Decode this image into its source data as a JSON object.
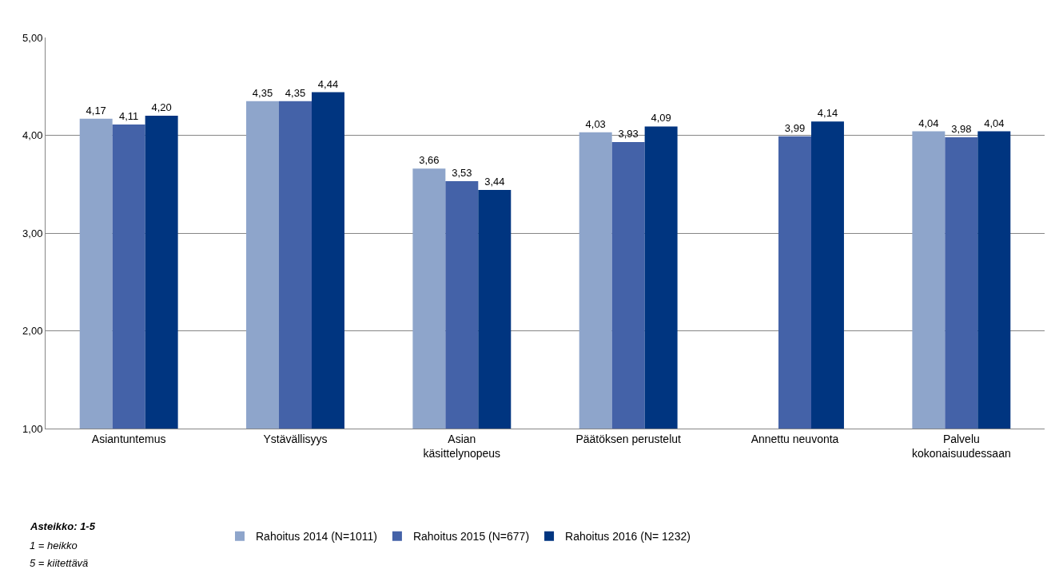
{
  "chart_data": {
    "type": "bar",
    "categories": [
      "Asiantuntemus",
      "Ystävällisyys",
      "Asian käsittelynopeus",
      "Päätöksen perustelut",
      "Annettu neuvonta",
      "Palvelu kokonaisuudessaan"
    ],
    "series": [
      {
        "name": "Rahoitus 2014 (N=1011)",
        "color": "#8ea5cb",
        "values": [
          4.17,
          4.35,
          3.66,
          4.03,
          null,
          4.04
        ],
        "value_labels": [
          "4,17",
          "4,35",
          "3,66",
          "4,03",
          null,
          "4,04"
        ]
      },
      {
        "name": "Rahoitus 2015 (N=677)",
        "color": "#4462a8",
        "values": [
          4.11,
          4.35,
          3.53,
          3.93,
          3.99,
          3.98
        ],
        "value_labels": [
          "4,11",
          "4,35",
          "3,53",
          "3,93",
          "3,99",
          "3,98"
        ]
      },
      {
        "name": "Rahoitus 2016 (N= 1232)",
        "color": "#003580",
        "values": [
          4.2,
          4.44,
          3.44,
          4.09,
          4.14,
          4.04
        ],
        "value_labels": [
          "4,20",
          "4,44",
          "3,44",
          "4,09",
          "4,14",
          "4,04"
        ]
      }
    ],
    "ylim": [
      1,
      5
    ],
    "yticks": [
      {
        "value": 1,
        "label": "1,00"
      },
      {
        "value": 2,
        "label": "2,00"
      },
      {
        "value": 3,
        "label": "3,00"
      },
      {
        "value": 4,
        "label": "4,00"
      },
      {
        "value": 5,
        "label": "5,00"
      }
    ],
    "grid": "y",
    "legend": "bottom",
    "annotations": [
      "Asteikko: 1-5",
      "1 = heikko",
      "5 = kiitettävä"
    ]
  }
}
